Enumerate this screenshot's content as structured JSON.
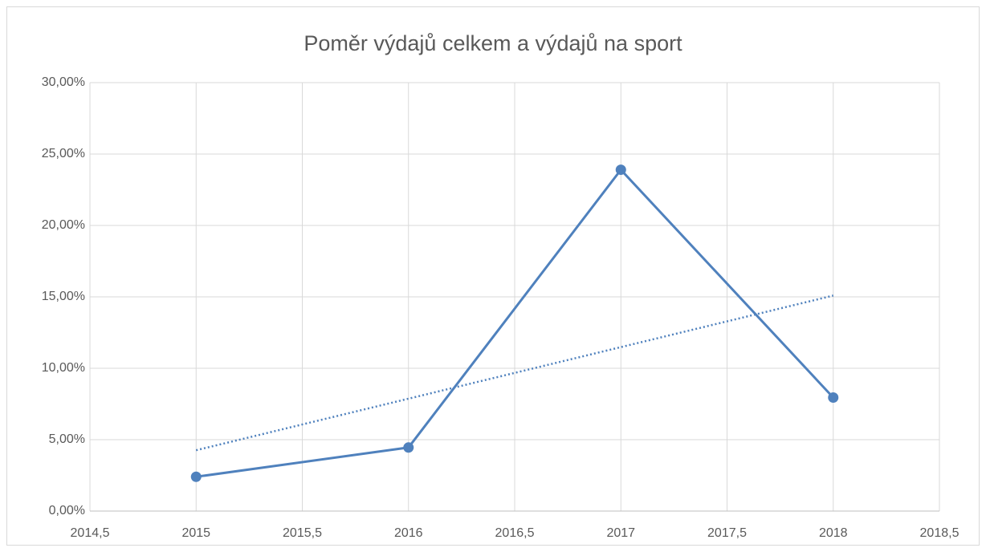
{
  "chart_data": {
    "type": "scatter",
    "title": "Poměr výdajů celkem a výdajů na sport",
    "x": [
      2015,
      2016,
      2017,
      2018
    ],
    "series": [
      {
        "color": "#4f81bd",
        "values": [
          2.4,
          4.45,
          23.9,
          7.95
        ]
      }
    ],
    "trendline": {
      "color": "#4f81bd",
      "x": [
        2015,
        2018
      ],
      "values": [
        4.26,
        15.09
      ]
    },
    "xlim": [
      2014.5,
      2018.5
    ],
    "xticks": [
      {
        "value": 2014.5,
        "label": "2014,5"
      },
      2015,
      {
        "value": 2015.5,
        "label": "2015,5"
      },
      2016,
      {
        "value": 2016.5,
        "label": "2016,5"
      },
      2017,
      {
        "value": 2017.5,
        "label": "2017,5"
      },
      2018,
      {
        "value": 2018.5,
        "label": "2018,5"
      }
    ],
    "ylim": [
      0,
      30
    ],
    "yticks": [
      {
        "value": 0,
        "label": "0,00%"
      },
      {
        "value": 5,
        "label": "5,00%"
      },
      {
        "value": 10,
        "label": "10,00%"
      },
      {
        "value": 15,
        "label": "15,00%"
      },
      {
        "value": 20,
        "label": "20,00%"
      },
      {
        "value": 25,
        "label": "25,00%"
      },
      {
        "value": 30,
        "label": "30,00%"
      }
    ],
    "grid": true
  }
}
